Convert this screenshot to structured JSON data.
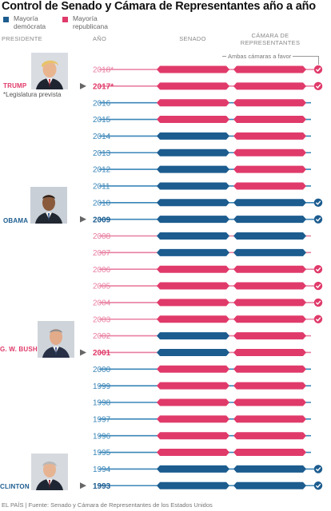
{
  "title": "Control de Senado y Cámara de Representantes año a año",
  "legend": [
    {
      "label": "Mayoría demócrata",
      "color": "#1c5c8f"
    },
    {
      "label": "Mayoría republicana",
      "color": "#e03a6a"
    }
  ],
  "columns": {
    "president": "PRESIDENTE",
    "year": "AÑO",
    "senate": "SENADO",
    "house": "CÁMARA DE REPRESENTANTES"
  },
  "both_note": "Ambas cámaras a favor",
  "presidents": [
    {
      "name": "TRUMP",
      "party": "R",
      "note": "*Legislatura prevista",
      "photo": "trump-photo"
    },
    {
      "name": "OBAMA",
      "party": "D",
      "note": "",
      "photo": "obama-photo"
    },
    {
      "name": "G. W. BUSH",
      "party": "R",
      "note": "",
      "photo": "bush-photo"
    },
    {
      "name": "CLINTON",
      "party": "D",
      "note": "",
      "photo": "clinton-photo"
    }
  ],
  "footer": "EL PAÍS | Fuente: Senado y Cámara de Representantes de los Estados Unidos",
  "colors": {
    "dem": "#1c5c8f",
    "rep": "#e03a6a",
    "dem_light": "#3b86b8",
    "rep_light": "#e87fa0"
  },
  "chart_data": {
    "type": "table",
    "columns": [
      "Año",
      "Senado",
      "Cámara de Representantes",
      "Ambas cámaras a favor del presidente"
    ],
    "rows": [
      {
        "year": "2018*",
        "senate": "R",
        "house": "R",
        "both": true,
        "inauguration": false,
        "president_party": "R"
      },
      {
        "year": "2017*",
        "senate": "R",
        "house": "R",
        "both": true,
        "inauguration": true,
        "president_party": "R"
      },
      {
        "year": "2016",
        "senate": "R",
        "house": "R",
        "both": false,
        "inauguration": false,
        "president_party": "D"
      },
      {
        "year": "2015",
        "senate": "R",
        "house": "R",
        "both": false,
        "inauguration": false,
        "president_party": "D"
      },
      {
        "year": "2014",
        "senate": "D",
        "house": "R",
        "both": false,
        "inauguration": false,
        "president_party": "D"
      },
      {
        "year": "2013",
        "senate": "D",
        "house": "R",
        "both": false,
        "inauguration": false,
        "president_party": "D"
      },
      {
        "year": "2012",
        "senate": "D",
        "house": "R",
        "both": false,
        "inauguration": false,
        "president_party": "D"
      },
      {
        "year": "2011",
        "senate": "D",
        "house": "R",
        "both": false,
        "inauguration": false,
        "president_party": "D"
      },
      {
        "year": "2010",
        "senate": "D",
        "house": "D",
        "both": true,
        "inauguration": false,
        "president_party": "D"
      },
      {
        "year": "2009",
        "senate": "D",
        "house": "D",
        "both": true,
        "inauguration": true,
        "president_party": "D"
      },
      {
        "year": "2008",
        "senate": "D",
        "house": "D",
        "both": false,
        "inauguration": false,
        "president_party": "R"
      },
      {
        "year": "2007",
        "senate": "D",
        "house": "D",
        "both": false,
        "inauguration": false,
        "president_party": "R"
      },
      {
        "year": "2006",
        "senate": "R",
        "house": "R",
        "both": true,
        "inauguration": false,
        "president_party": "R"
      },
      {
        "year": "2005",
        "senate": "R",
        "house": "R",
        "both": true,
        "inauguration": false,
        "president_party": "R"
      },
      {
        "year": "2004",
        "senate": "R",
        "house": "R",
        "both": true,
        "inauguration": false,
        "president_party": "R"
      },
      {
        "year": "2003",
        "senate": "R",
        "house": "R",
        "both": true,
        "inauguration": false,
        "president_party": "R"
      },
      {
        "year": "2002",
        "senate": "D",
        "house": "R",
        "both": false,
        "inauguration": false,
        "president_party": "R"
      },
      {
        "year": "2001",
        "senate": "D",
        "house": "R",
        "both": false,
        "inauguration": true,
        "president_party": "R"
      },
      {
        "year": "2000",
        "senate": "R",
        "house": "R",
        "both": false,
        "inauguration": false,
        "president_party": "D"
      },
      {
        "year": "1999",
        "senate": "R",
        "house": "R",
        "both": false,
        "inauguration": false,
        "president_party": "D"
      },
      {
        "year": "1998",
        "senate": "R",
        "house": "R",
        "both": false,
        "inauguration": false,
        "president_party": "D"
      },
      {
        "year": "1997",
        "senate": "R",
        "house": "R",
        "both": false,
        "inauguration": false,
        "president_party": "D"
      },
      {
        "year": "1996",
        "senate": "R",
        "house": "R",
        "both": false,
        "inauguration": false,
        "president_party": "D"
      },
      {
        "year": "1995",
        "senate": "R",
        "house": "R",
        "both": false,
        "inauguration": false,
        "president_party": "D"
      },
      {
        "year": "1994",
        "senate": "D",
        "house": "D",
        "both": true,
        "inauguration": false,
        "president_party": "D"
      },
      {
        "year": "1993",
        "senate": "D",
        "house": "D",
        "both": true,
        "inauguration": true,
        "president_party": "D"
      }
    ]
  }
}
